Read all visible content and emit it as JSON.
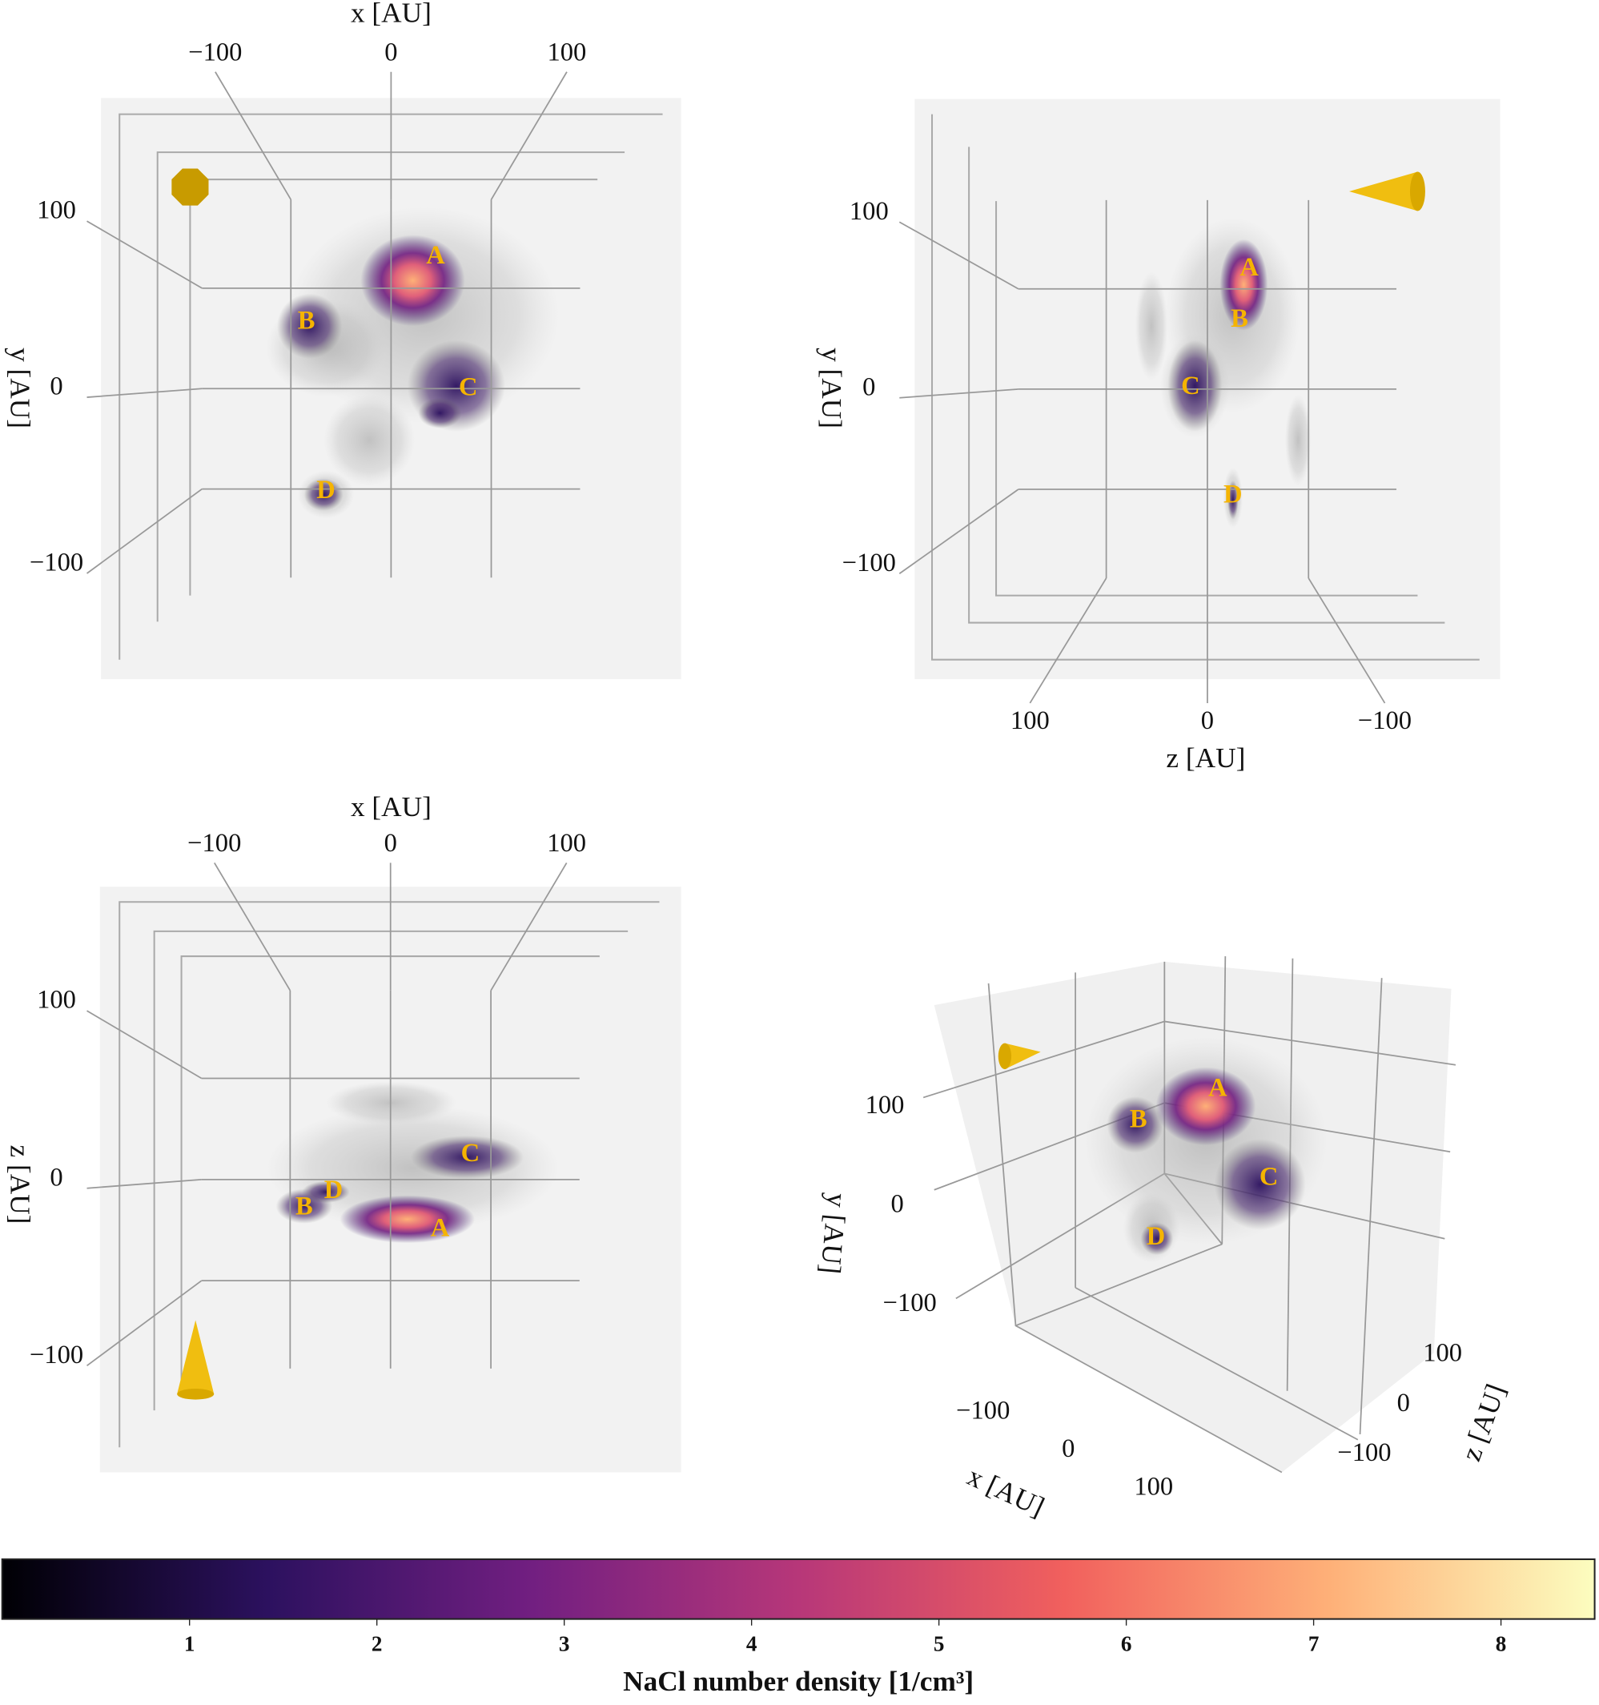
{
  "chart_data": [
    {
      "type": "projection",
      "xlabel": "x [AU]",
      "ylabel": "y [AU]",
      "xlim": [
        -165,
        165
      ],
      "ylim": [
        -165,
        165
      ],
      "xticks": [
        {
          "value": -100,
          "label": "−100"
        },
        0,
        100
      ],
      "yticks": [
        {
          "value": -100,
          "label": "−100"
        },
        0,
        100
      ],
      "annotations": [
        "A",
        "B",
        "C",
        "D"
      ],
      "grid": true
    },
    {
      "type": "projection",
      "xlabel": "z [AU]",
      "ylabel": "y [AU]",
      "xlim": [
        165,
        -165
      ],
      "ylim": [
        -165,
        165
      ],
      "xticks": [
        100,
        0,
        {
          "value": -100,
          "label": "−100"
        }
      ],
      "yticks": [
        {
          "value": -100,
          "label": "−100"
        },
        0,
        100
      ],
      "annotations": [
        "A",
        "B",
        "C",
        "D"
      ],
      "grid": true
    },
    {
      "type": "projection",
      "xlabel": "x [AU]",
      "ylabel": "z [AU]",
      "xlim": [
        -165,
        165
      ],
      "ylim": [
        -165,
        165
      ],
      "xticks": [
        {
          "value": -100,
          "label": "−100"
        },
        0,
        100
      ],
      "yticks": [
        {
          "value": -100,
          "label": "−100"
        },
        0,
        100
      ],
      "annotations": [
        "A",
        "B",
        "C",
        "D"
      ],
      "grid": true
    },
    {
      "type": "projection3d",
      "xlabel": "x [AU]",
      "ylabel": "y [AU]",
      "zlabel": "z [AU]",
      "xlim": [
        -165,
        165
      ],
      "ylim": [
        -165,
        165
      ],
      "zlim": [
        -165,
        165
      ],
      "xticks": [
        {
          "value": -100,
          "label": "−100"
        },
        0,
        100
      ],
      "yticks": [
        {
          "value": -100,
          "label": "−100"
        },
        0,
        100
      ],
      "zticks": [
        {
          "value": -100,
          "label": "−100"
        },
        0,
        100
      ],
      "annotations": [
        "A",
        "B",
        "C",
        "D"
      ]
    },
    {
      "type": "colorbar",
      "label": "NaCl number density [1/cm³]",
      "xlim": [
        0,
        8.5
      ],
      "xticks": [
        1,
        2,
        3,
        4,
        5,
        6,
        7,
        8
      ],
      "colors": [
        "#000004",
        "#2c115f",
        "#721f81",
        "#b73779",
        "#f1605d",
        "#feb078",
        "#fcfdbf"
      ]
    }
  ]
}
